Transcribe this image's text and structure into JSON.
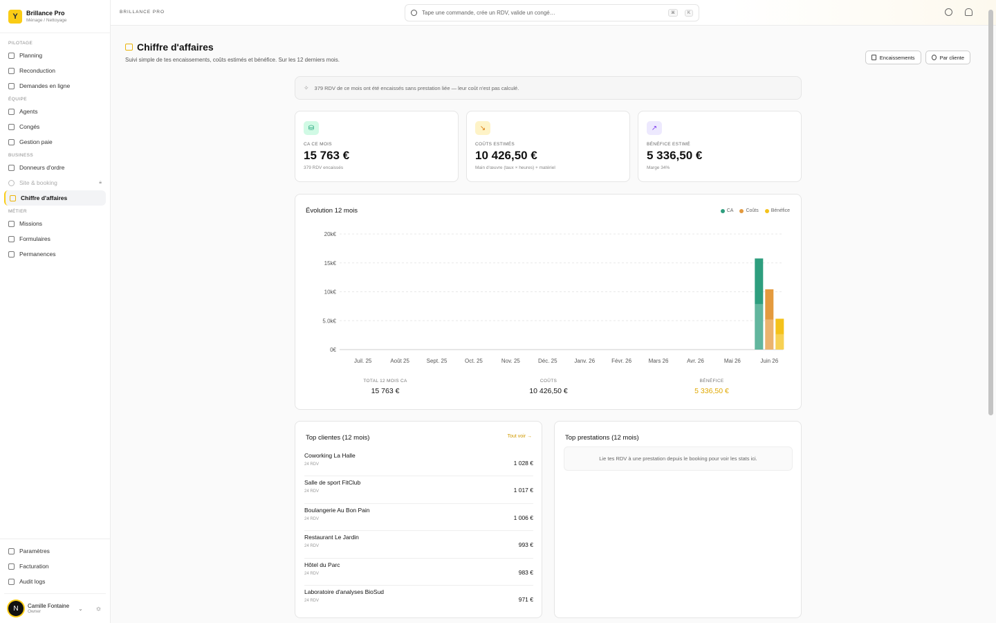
{
  "brand": {
    "logo": "Y",
    "name": "Brillance Pro",
    "sub": "Ménage / Nettoyage"
  },
  "sidebar": {
    "sections": [
      {
        "title": "PILOTAGE",
        "items": [
          {
            "label": "Planning",
            "icon": "calendar-icon"
          },
          {
            "label": "Reconduction",
            "icon": "refresh-icon"
          },
          {
            "label": "Demandes en ligne",
            "icon": "inbox-icon"
          }
        ]
      },
      {
        "title": "ÉQUIPE",
        "items": [
          {
            "label": "Agents",
            "icon": "users-icon"
          },
          {
            "label": "Congés",
            "icon": "calendar-off-icon"
          },
          {
            "label": "Gestion paie",
            "icon": "payroll-icon"
          }
        ]
      },
      {
        "title": "BUSINESS",
        "items": [
          {
            "label": "Donneurs d'ordre",
            "icon": "building-icon"
          },
          {
            "label": "Site & booking",
            "icon": "globe-icon"
          },
          {
            "label": "Chiffre d'affaires",
            "icon": "wallet-icon"
          }
        ]
      },
      {
        "title": "MÉTIER",
        "items": [
          {
            "label": "Missions",
            "icon": "check-square-icon"
          },
          {
            "label": "Formulaires",
            "icon": "file-icon"
          },
          {
            "label": "Permanences",
            "icon": "calendar-clock-icon"
          }
        ]
      }
    ],
    "bottom": [
      {
        "label": "Paramètres",
        "icon": "gear-icon"
      },
      {
        "label": "Facturation",
        "icon": "credit-card-icon"
      },
      {
        "label": "Audit logs",
        "icon": "shield-icon"
      }
    ],
    "user": {
      "initial": "N",
      "name": "Camille Fontaine",
      "role": "Owner"
    }
  },
  "topbar": {
    "brand": "BRILLANCE PRO",
    "search_placeholder": "Tape une commande, crée un RDV, valide un congé…",
    "kbd1": "⌘",
    "kbd2": "K"
  },
  "page": {
    "title": "Chiffre d'affaires",
    "subtitle": "Suivi simple de tes encaissements, coûts estimés et bénéfice. Sur les 12 derniers mois.",
    "btn_encaissements": "Encaissements",
    "btn_par_cliente": "Par cliente",
    "notice": "379 RDV de ce mois ont été encaissés sans prestation liée — leur coût n'est pas calculé."
  },
  "kpis": [
    {
      "label": "CA CE MOIS",
      "value": "15 763 €",
      "sub": "379 RDV encaissés",
      "color": "#d1fae5",
      "icon": "coins-icon"
    },
    {
      "label": "COÛTS ESTIMÉS",
      "value": "10 426,50 €",
      "sub": "Main d'œuvre (taux × heures) + matériel",
      "color": "#fef3c7",
      "icon": "trend-down-icon"
    },
    {
      "label": "BÉNÉFICE ESTIMÉ",
      "value": "5 336,50 €",
      "sub": "Marge 34%",
      "color": "#ede9fe",
      "icon": "trend-up-icon"
    }
  ],
  "chart": {
    "title": "Évolution 12 mois",
    "legend": [
      "CA",
      "Coûts",
      "Bénéfice"
    ],
    "totals": [
      {
        "label": "TOTAL 12 MOIS CA",
        "value": "15 763 €"
      },
      {
        "label": "COÛTS",
        "value": "10 426,50 €"
      },
      {
        "label": "BÉNÉFICE",
        "value": "5 336,50 €"
      }
    ]
  },
  "chart_data": {
    "type": "bar",
    "title": "Évolution 12 mois",
    "categories": [
      "Juil. 25",
      "Août 25",
      "Sept. 25",
      "Oct. 25",
      "Nov. 25",
      "Déc. 25",
      "Janv. 26",
      "Févr. 26",
      "Mars 26",
      "Avr. 26",
      "Mai 26",
      "Juin 26"
    ],
    "series": [
      {
        "name": "CA",
        "values": [
          0,
          0,
          0,
          0,
          0,
          0,
          0,
          0,
          0,
          0,
          0,
          15763
        ],
        "color": "#2e9e7e"
      },
      {
        "name": "Coûts",
        "values": [
          0,
          0,
          0,
          0,
          0,
          0,
          0,
          0,
          0,
          0,
          0,
          10426.5
        ],
        "color": "#e49a3e"
      },
      {
        "name": "Bénéfice",
        "values": [
          0,
          0,
          0,
          0,
          0,
          0,
          0,
          0,
          0,
          0,
          0,
          5336.5
        ],
        "color": "#f4c21b"
      }
    ],
    "yticks": [
      "0€",
      "5.0k€",
      "10k€",
      "15k€",
      "20k€"
    ],
    "ylim": [
      0,
      20000
    ],
    "grid": true,
    "legend_position": "top-right"
  },
  "top_clients": {
    "title": "Top clientes (12 mois)",
    "see_all": "Tout voir →",
    "rows": [
      {
        "name": "Coworking La Halle",
        "sub": "24 RDV",
        "amount": "1 028 €"
      },
      {
        "name": "Salle de sport FitClub",
        "sub": "24 RDV",
        "amount": "1 017 €"
      },
      {
        "name": "Boulangerie Au Bon Pain",
        "sub": "24 RDV",
        "amount": "1 006 €"
      },
      {
        "name": "Restaurant Le Jardin",
        "sub": "24 RDV",
        "amount": "993 €"
      },
      {
        "name": "Hôtel du Parc",
        "sub": "24 RDV",
        "amount": "983 €"
      },
      {
        "name": "Laboratoire d'analyses BioSud",
        "sub": "24 RDV",
        "amount": "971 €"
      }
    ]
  },
  "top_prestations": {
    "title": "Top prestations (12 mois)",
    "empty": "Lie tes RDV à une prestation depuis le booking pour voir les stats ici."
  }
}
